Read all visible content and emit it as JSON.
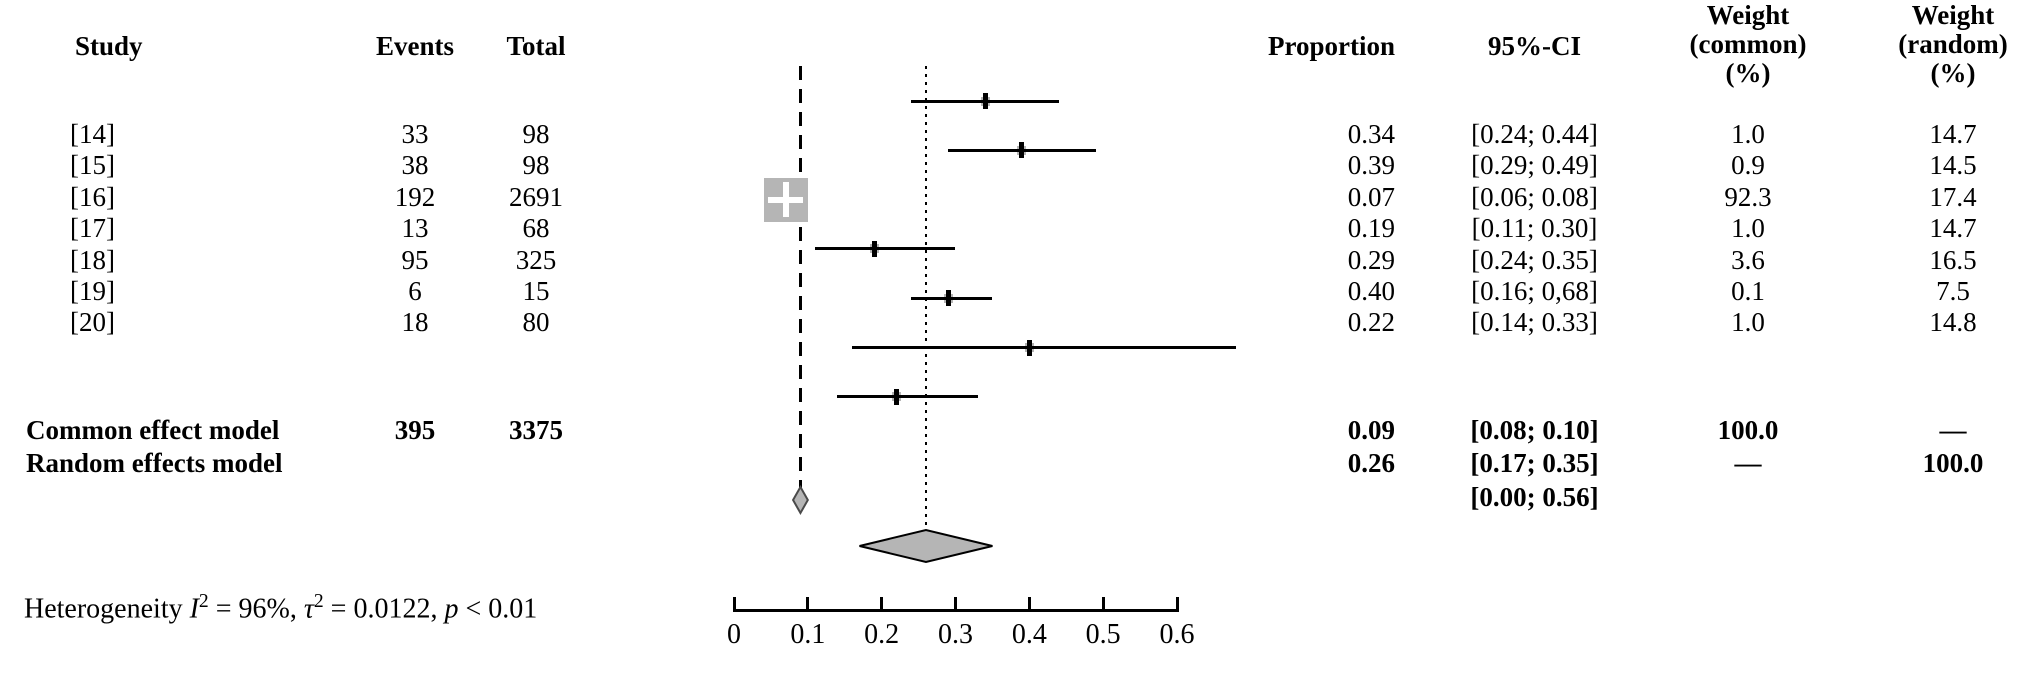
{
  "table": {
    "headers": {
      "study": "Study",
      "events": "Events",
      "total": "Total",
      "proportion": "Proportion",
      "ci": "95%-CI",
      "weight_common_lines": [
        "Weight",
        "(common)",
        "(%)"
      ],
      "weight_random_lines": [
        "Weight",
        "(random)",
        "(%)"
      ]
    }
  },
  "chart_data": {
    "type": "forest",
    "studies": [
      {
        "label": "[14]",
        "events": 33,
        "total": 98,
        "proportion": 0.34,
        "proportion_text": "0.34",
        "ci_low": 0.24,
        "ci_high": 0.44,
        "ci_text": "[0.24; 0.44]",
        "weight_common": 1.0,
        "weight_common_text": "1.0",
        "weight_random": 14.7,
        "weight_random_text": "14.7"
      },
      {
        "label": "[15]",
        "events": 38,
        "total": 98,
        "proportion": 0.39,
        "proportion_text": "0.39",
        "ci_low": 0.29,
        "ci_high": 0.49,
        "ci_text": "[0.29; 0.49]",
        "weight_common": 0.9,
        "weight_common_text": "0.9",
        "weight_random": 14.5,
        "weight_random_text": "14.5"
      },
      {
        "label": "[16]",
        "events": 192,
        "total": 2691,
        "proportion": 0.07,
        "proportion_text": "0.07",
        "ci_low": 0.06,
        "ci_high": 0.08,
        "ci_text": "[0.06; 0.08]",
        "weight_common": 92.3,
        "weight_common_text": "92.3",
        "weight_random": 17.4,
        "weight_random_text": "17.4"
      },
      {
        "label": "[17]",
        "events": 13,
        "total": 68,
        "proportion": 0.19,
        "proportion_text": "0.19",
        "ci_low": 0.11,
        "ci_high": 0.3,
        "ci_text": "[0.11; 0.30]",
        "weight_common": 1.0,
        "weight_common_text": "1.0",
        "weight_random": 14.7,
        "weight_random_text": "14.7"
      },
      {
        "label": "[18]",
        "events": 95,
        "total": 325,
        "proportion": 0.29,
        "proportion_text": "0.29",
        "ci_low": 0.24,
        "ci_high": 0.35,
        "ci_text": "[0.24; 0.35]",
        "weight_common": 3.6,
        "weight_common_text": "3.6",
        "weight_random": 16.5,
        "weight_random_text": "16.5"
      },
      {
        "label": "[19]",
        "events": 6,
        "total": 15,
        "proportion": 0.4,
        "proportion_text": "0.40",
        "ci_low": 0.16,
        "ci_high": 0.68,
        "ci_text": "[0.16; 0,68]",
        "weight_common": 0.1,
        "weight_common_text": "0.1",
        "weight_random": 7.5,
        "weight_random_text": "7.5"
      },
      {
        "label": "[20]",
        "events": 18,
        "total": 80,
        "proportion": 0.22,
        "proportion_text": "0.22",
        "ci_low": 0.14,
        "ci_high": 0.33,
        "ci_text": "[0.14; 0.33]",
        "weight_common": 1.0,
        "weight_common_text": "1.0",
        "weight_random": 14.8,
        "weight_random_text": "14.8"
      }
    ],
    "models": [
      {
        "label": "Common effect model",
        "events": 395,
        "total": 3375,
        "proportion": 0.09,
        "proportion_text": "0.09",
        "ci_low": 0.08,
        "ci_high": 0.1,
        "ci_text": "[0.08; 0.10]",
        "weight_common_text": "100.0",
        "weight_random_text": "—",
        "line_style": "dashed"
      },
      {
        "label": "Random effects model",
        "proportion": 0.26,
        "proportion_text": "0.26",
        "ci_low": 0.17,
        "ci_high": 0.35,
        "ci_text": "[0.17; 0.35]",
        "weight_common_text": "—",
        "weight_random_text": "100.0",
        "line_style": "dotted"
      }
    ],
    "prediction": {
      "ci_text": "[0.00; 0.56]"
    },
    "axis": {
      "min": 0,
      "max": 0.6,
      "tick_values": [
        0,
        0.1,
        0.2,
        0.3,
        0.4,
        0.5,
        0.6
      ],
      "tick_labels": [
        "0",
        "0.1",
        "0.2",
        "0.3",
        "0.4",
        "0.5",
        "0.6"
      ]
    },
    "heterogeneity": [
      {
        "text": "Heterogeneity "
      },
      {
        "text": "I",
        "italic": true
      },
      {
        "text": "2",
        "sup": true
      },
      {
        "text": " = 96%, "
      },
      {
        "text": "τ",
        "italic": true
      },
      {
        "text": "2",
        "sup": true
      },
      {
        "text": " = 0.0122, "
      },
      {
        "text": "p",
        "italic": true
      },
      {
        "text": " < 0.01"
      }
    ],
    "colors": {
      "square": "#b5b5b5",
      "square_cross": "#ffffff",
      "diamond_fill": "#b5b5b5",
      "diamond_edge_small": "#4a4a4a",
      "diamond_edge_large": "#000000",
      "line": "#000000"
    }
  }
}
